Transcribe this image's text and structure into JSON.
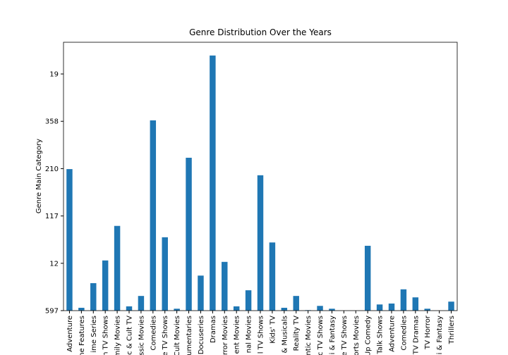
{
  "chart_data": {
    "type": "bar",
    "title": "Genre Distribution Over the Years",
    "y_label": "Genre Main Category",
    "categories": [
      "Adventure",
      "me Features",
      "ime Series",
      "n TV Shows",
      "mily Movies",
      "c & Cult TV",
      "ssic Movies",
      "Comedies",
      "e TV Shows",
      "Cult Movies",
      "umentaries",
      "Docuseries",
      "Dramas",
      "rror Movies",
      "ent Movies",
      "nal Movies",
      "l TV Shows",
      "Kids' TV",
      "& Musicals",
      "Reality TV",
      "ntic Movies",
      "c TV Shows",
      "i & Fantasy",
      "e TV Shows",
      "ports Movies",
      "Up Comedy",
      "Talk Shows",
      "Adventure",
      "Comedies",
      "TV Dramas",
      "TV Horror",
      "i & Fantasy",
      "Thrillers"
    ],
    "values": [
      2.99,
      0.06,
      0.58,
      1.06,
      1.79,
      0.09,
      0.31,
      4.02,
      1.55,
      0.04,
      3.23,
      0.74,
      5.39,
      1.03,
      0.09,
      0.43,
      2.86,
      1.44,
      0.06,
      0.31,
      0.01,
      0.1,
      0.04,
      0,
      0,
      1.37,
      0.13,
      0.15,
      0.45,
      0.28,
      0.04,
      0,
      0.19
    ],
    "color": "#1f77b4",
    "ylim": [
      0,
      5.67
    ],
    "yticks": [
      {
        "value": 0,
        "label": "597"
      },
      {
        "value": 1,
        "label": "12"
      },
      {
        "value": 2,
        "label": "117"
      },
      {
        "value": 3,
        "label": "210"
      },
      {
        "value": 4,
        "label": "358"
      },
      {
        "value": 5,
        "label": "19"
      }
    ]
  }
}
